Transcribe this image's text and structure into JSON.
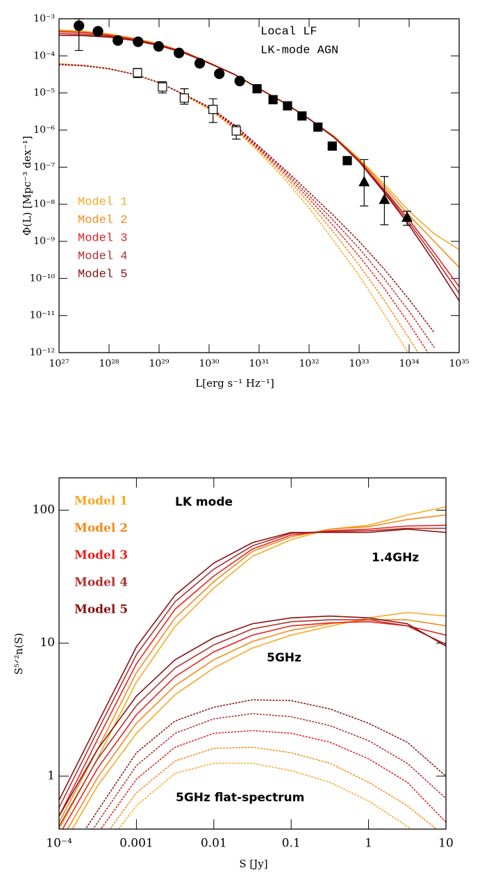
{
  "chart_data": [
    {
      "type": "line",
      "log_x": true,
      "log_y": true,
      "grid": false,
      "xlabel": "L[erg s⁻¹ Hz⁻¹]",
      "ylabel": "Φ(L) [Mpc⁻³ dex⁻¹]",
      "annotations": [
        "Local LF",
        "LK-mode AGN"
      ],
      "xlim": [
        1e+27,
        1e+35
      ],
      "ylim": [
        1e-12,
        0.001
      ],
      "xticks": [
        {
          "value": 1e+27,
          "label": "10²⁷"
        },
        {
          "value": 1e+28,
          "label": "10²⁸"
        },
        {
          "value": 1e+29,
          "label": "10²⁹"
        },
        {
          "value": 1e+30,
          "label": "10³⁰"
        },
        {
          "value": 1e+31,
          "label": "10³¹"
        },
        {
          "value": 1e+32,
          "label": "10³²"
        },
        {
          "value": 1e+33,
          "label": "10³³"
        },
        {
          "value": 1e+34,
          "label": "10³⁴"
        },
        {
          "value": 1e+35,
          "label": "10³⁵"
        }
      ],
      "yticks": [
        {
          "value": 1e-12,
          "label": "10⁻¹²"
        },
        {
          "value": 1e-11,
          "label": "10⁻¹¹"
        },
        {
          "value": 1e-10,
          "label": "10⁻¹⁰"
        },
        {
          "value": 1e-09,
          "label": "10⁻⁹"
        },
        {
          "value": 1e-08,
          "label": "10⁻⁸"
        },
        {
          "value": 1e-07,
          "label": "10⁻⁷"
        },
        {
          "value": 1e-06,
          "label": "10⁻⁶"
        },
        {
          "value": 1e-05,
          "label": "10⁻⁵"
        },
        {
          "value": 0.0001,
          "label": "10⁻⁴"
        },
        {
          "value": 0.001,
          "label": "10⁻³"
        }
      ],
      "x": [
        1e+27,
        3.16e+27,
        1e+28,
        3.16e+28,
        1e+29,
        3.16e+29,
        1e+30,
        3.16e+30,
        1e+31,
        3.16e+31,
        1e+32,
        3.16e+32,
        1e+33,
        3.16e+33,
        1e+34,
        3.16e+34,
        1e+35
      ],
      "series": [
        {
          "name": "Model 1",
          "color": "#f7a823",
          "values": [
            0.0005,
            0.00046,
            0.00039,
            0.0003,
            0.00021,
            0.00013,
            6.6e-05,
            3.2e-05,
            1.3e-05,
            5.5e-06,
            2e-06,
            6.8e-07,
            1.7e-07,
            3.5e-08,
            6.5e-09,
            1.6e-09,
            6e-10
          ],
          "values_dotted": [
            6.2e-05,
            5.6e-05,
            4.6e-05,
            3.2e-05,
            1.9e-05,
            8.8e-06,
            3.6e-06,
            1.1e-06,
            2.5e-07,
            5e-08,
            8e-09,
            1e-09,
            1.2e-10,
            1.1e-11,
            9e-13,
            6e-14,
            null
          ]
        },
        {
          "name": "Model 2",
          "color": "#f28a1a",
          "values": [
            0.00047,
            0.00044,
            0.00038,
            0.00029,
            0.000205,
            0.000128,
            6.5e-05,
            3.2e-05,
            1.3e-05,
            5.5e-06,
            2e-06,
            6.6e-07,
            1.6e-07,
            3e-08,
            5e-09,
            1e-09,
            2e-10
          ],
          "values_dotted": [
            6.1e-05,
            5.5e-05,
            4.5e-05,
            3.2e-05,
            1.9e-05,
            8.9e-06,
            3.8e-06,
            1.15e-06,
            2.8e-07,
            6e-08,
            1.1e-08,
            1.7e-09,
            2.3e-10,
            2.6e-11,
            2.4e-12,
            2e-13,
            null
          ]
        },
        {
          "name": "Model 3",
          "color": "#e8201c",
          "values": [
            0.00045,
            0.00042,
            0.00036,
            0.00028,
            0.0002,
            0.000125,
            6.5e-05,
            3.2e-05,
            1.3e-05,
            5.5e-06,
            2e-06,
            6.5e-07,
            1.5e-07,
            2.5e-08,
            3.8e-09,
            5e-10,
            6e-11
          ],
          "values_dotted": [
            6e-05,
            5.5e-05,
            4.5e-05,
            3.2e-05,
            1.9e-05,
            9e-06,
            4e-06,
            1.2e-06,
            3e-07,
            7e-08,
            1.4e-08,
            2.5e-09,
            4e-10,
            5.5e-11,
            6e-12,
            5.5e-13,
            null
          ]
        },
        {
          "name": "Model 4",
          "color": "#b0302e",
          "values": [
            0.0004,
            0.00038,
            0.00034,
            0.00027,
            0.000195,
            0.000123,
            6.4e-05,
            3.2e-05,
            1.3e-05,
            5.5e-06,
            2e-06,
            6.4e-07,
            1.45e-07,
            2.3e-08,
            3.2e-09,
            3.8e-10,
            4e-11
          ],
          "values_dotted": [
            5.9e-05,
            5.4e-05,
            4.5e-05,
            3.2e-05,
            1.9e-05,
            9.1e-06,
            4.1e-06,
            1.3e-06,
            3.3e-07,
            8e-08,
            1.7e-08,
            3.5e-09,
            6.5e-10,
            1e-10,
            1.3e-11,
            1.4e-12,
            null
          ]
        },
        {
          "name": "Model 5",
          "color": "#8a1010",
          "values": [
            0.00036,
            0.00035,
            0.00032,
            0.00026,
            0.00019,
            0.00012,
            6.3e-05,
            3.2e-05,
            1.3e-05,
            5.5e-06,
            2e-06,
            6.3e-07,
            1.4e-07,
            2.1e-08,
            2.7e-09,
            2.8e-10,
            2.5e-11
          ],
          "values_dotted": [
            5.8e-05,
            5.4e-05,
            4.5e-05,
            3.2e-05,
            1.9e-05,
            9.2e-06,
            4.2e-06,
            1.4e-06,
            3.6e-07,
            9e-08,
            2.1e-08,
            4.8e-09,
            1e-09,
            1.8e-10,
            2.7e-11,
            3.5e-12,
            null
          ]
        }
      ],
      "points": [
        {
          "marker": "circle",
          "filled": true,
          "x": [
            2.5e+27,
            6e+27,
            1.5e+28,
            3.8e+28,
            9.8e+28,
            2.5e+29,
            6.5e+29,
            1.6e+30,
            4.1e+30
          ],
          "y": [
            0.00065,
            0.00046,
            0.00026,
            0.00024,
            0.00018,
            0.00012,
            6.3e-05,
            3.3e-05,
            2.1e-05
          ],
          "y_lower": [
            0.00014,
            null,
            null,
            null,
            null,
            null,
            null,
            null,
            null
          ],
          "y_upper": [
            0.001,
            null,
            null,
            null,
            null,
            null,
            null,
            null,
            null
          ]
        },
        {
          "marker": "square",
          "filled": true,
          "x": [
            9.1e+30,
            1.9e+31,
            3.7e+31,
            7.2e+31,
            1.5e+32,
            2.9e+32,
            5.8e+32
          ],
          "y": [
            1.3e-05,
            6.6e-06,
            4.5e-06,
            2.4e-06,
            1.2e-06,
            3.7e-07,
            1.5e-07
          ],
          "y_lower": [
            1.1e-05,
            5.6e-06,
            3.9e-06,
            2e-06,
            1e-06,
            3e-07,
            1.2e-07
          ],
          "y_upper": [
            1.5e-05,
            7.6e-06,
            5.1e-06,
            2.8e-06,
            1.4e-06,
            4.4e-07,
            1.8e-07
          ]
        },
        {
          "marker": "triangle",
          "filled": true,
          "x": [
            1.26e+33,
            3.2e+33,
            9.1e+33
          ],
          "y": [
            3.9e-08,
            1.3e-08,
            4.3e-09
          ],
          "y_lower": [
            9e-09,
            2.8e-09,
            2.7e-09
          ],
          "y_upper": [
            1.6e-07,
            5.6e-08,
            6.5e-09
          ]
        },
        {
          "marker": "square",
          "filled": false,
          "x": [
            3.7e+28,
            1.17e+29,
            3.2e+29,
            1.2e+30,
            3.5e+30
          ],
          "y": [
            3.5e-05,
            1.45e-05,
            7.3e-06,
            3.6e-06,
            9.5e-07
          ],
          "y_lower": [
            2.6e-05,
            1e-05,
            5e-06,
            1.6e-06,
            5.7e-07
          ],
          "y_upper": [
            4.6e-05,
            2e-05,
            1.3e-05,
            7e-06,
            1.35e-06
          ]
        }
      ]
    },
    {
      "type": "line",
      "log_x": true,
      "log_y": true,
      "grid": false,
      "xlabel": "S [Jy]",
      "ylabel": "S⁵ᐟ²n(S)",
      "annotations": [
        "LK mode",
        "1.4GHz",
        "5GHz",
        "5GHz flat-spectrum"
      ],
      "xlim": [
        0.0001,
        10
      ],
      "ylim": [
        0.4,
        175
      ],
      "xticks": [
        {
          "value": 0.0001,
          "label": "10⁻⁴"
        },
        0.001,
        0.01,
        0.1,
        1,
        10
      ],
      "yticks": [
        1,
        10,
        100
      ],
      "x": [
        0.0001,
        0.000316,
        0.001,
        0.00316,
        0.01,
        0.0316,
        0.1,
        0.316,
        1,
        3.16,
        10
      ],
      "series": [
        {
          "name": "Model 1",
          "color": "#f7a823",
          "values": [
            0.4,
            1.37,
            5.1,
            13.4,
            26,
            45,
            60,
            72,
            77,
            92,
            106
          ],
          "values_5GHz": [
            0.27,
            0.85,
            2.1,
            4.1,
            6.5,
            9.2,
            11.5,
            13.4,
            15.5,
            17,
            16
          ],
          "values_5GHz_flat": [
            0.1,
            0.25,
            0.6,
            1.05,
            1.25,
            1.25,
            1.1,
            0.9,
            0.65,
            0.42,
            0.25
          ]
        },
        {
          "name": "Model 2",
          "color": "#f28a1a",
          "values": [
            0.45,
            1.6,
            6,
            15.5,
            29,
            49,
            63,
            72,
            75,
            85,
            92
          ],
          "values_5GHz": [
            0.31,
            0.98,
            2.5,
            4.8,
            7.5,
            10.3,
            12.5,
            14,
            15,
            15,
            13.5
          ],
          "values_5GHz_flat": [
            0.12,
            0.3,
            0.75,
            1.3,
            1.62,
            1.65,
            1.5,
            1.25,
            0.9,
            0.6,
            0.35
          ]
        },
        {
          "name": "Model 3",
          "color": "#e8201c",
          "values": [
            0.5,
            1.9,
            7,
            18,
            32,
            51,
            65,
            70,
            72,
            76,
            77
          ],
          "values_5GHz": [
            0.36,
            1.15,
            2.9,
            5.6,
            8.6,
            11.5,
            13.5,
            14.2,
            14.5,
            13.5,
            11.5
          ],
          "values_5GHz_flat": [
            0.14,
            0.37,
            0.95,
            1.65,
            2.1,
            2.2,
            2.1,
            1.8,
            1.35,
            0.9,
            0.45
          ]
        },
        {
          "name": "Model 4",
          "color": "#b0302e",
          "values": [
            0.58,
            2.2,
            8.2,
            20.5,
            36,
            54,
            67,
            69,
            70,
            73,
            73
          ],
          "values_5GHz": [
            0.42,
            1.35,
            3.4,
            6.5,
            9.7,
            12.8,
            14.5,
            15,
            15,
            13.5,
            9.8
          ],
          "values_5GHz_flat": [
            0.17,
            0.45,
            1.2,
            2.1,
            2.7,
            2.95,
            2.8,
            2.4,
            1.85,
            1.25,
            0.68
          ]
        },
        {
          "name": "Model 5",
          "color": "#8a1010",
          "values": [
            0.66,
            2.5,
            9.4,
            23,
            40,
            57,
            68,
            68,
            68,
            72,
            68
          ],
          "values_5GHz": [
            0.5,
            1.6,
            4,
            7.5,
            11,
            14,
            15.5,
            16,
            15.5,
            14,
            9.5
          ],
          "values_5GHz_flat": [
            0.2,
            0.55,
            1.5,
            2.6,
            3.3,
            3.75,
            3.7,
            3.2,
            2.5,
            1.8,
            1
          ]
        }
      ]
    }
  ]
}
